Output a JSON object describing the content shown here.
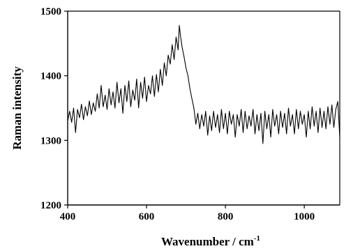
{
  "chart_data": {
    "type": "line",
    "title": "",
    "xlabel": "Wavenumber / cm",
    "xlabel_superscript": "-1",
    "ylabel": "Raman intensity",
    "xlim": [
      400,
      1090
    ],
    "ylim": [
      1200,
      1500
    ],
    "x_ticks": [
      400,
      600,
      800,
      1000
    ],
    "y_ticks": [
      1200,
      1300,
      1400,
      1500
    ],
    "x_tick_labels": [
      "400",
      "600",
      "800",
      "1000"
    ],
    "y_tick_labels": [
      "1200",
      "1300",
      "1400",
      "1500"
    ],
    "grid": false,
    "legend": "none",
    "line_color": "#000000",
    "series": [
      {
        "x": [
          400,
          405,
          410,
          415,
          420,
          425,
          430,
          435,
          440,
          445,
          450,
          455,
          460,
          465,
          470,
          475,
          480,
          485,
          490,
          495,
          500,
          505,
          510,
          515,
          520,
          525,
          530,
          535,
          540,
          545,
          550,
          555,
          560,
          565,
          570,
          575,
          580,
          585,
          590,
          595,
          600,
          605,
          610,
          615,
          620,
          625,
          630,
          635,
          640,
          645,
          650,
          655,
          660,
          665,
          670,
          675,
          680,
          683,
          686,
          690,
          695,
          700,
          705,
          710,
          715,
          720,
          725,
          730,
          735,
          740,
          745,
          750,
          755,
          760,
          765,
          770,
          775,
          780,
          785,
          790,
          795,
          800,
          805,
          810,
          815,
          820,
          825,
          830,
          835,
          840,
          845,
          850,
          855,
          860,
          865,
          870,
          875,
          880,
          885,
          890,
          895,
          900,
          905,
          910,
          915,
          920,
          925,
          930,
          935,
          940,
          945,
          950,
          955,
          960,
          965,
          970,
          975,
          980,
          985,
          990,
          995,
          1000,
          1005,
          1010,
          1015,
          1020,
          1025,
          1030,
          1035,
          1040,
          1045,
          1050,
          1055,
          1060,
          1065,
          1070,
          1075,
          1080,
          1085,
          1090
        ],
        "values": [
          1330,
          1345,
          1328,
          1350,
          1312,
          1348,
          1335,
          1356,
          1332,
          1352,
          1338,
          1361,
          1340,
          1358,
          1345,
          1372,
          1350,
          1385,
          1352,
          1370,
          1348,
          1380,
          1355,
          1375,
          1350,
          1390,
          1358,
          1380,
          1342,
          1385,
          1360,
          1392,
          1352,
          1378,
          1362,
          1395,
          1350,
          1390,
          1365,
          1398,
          1360,
          1385,
          1372,
          1400,
          1368,
          1402,
          1375,
          1410,
          1385,
          1420,
          1400,
          1432,
          1418,
          1448,
          1425,
          1460,
          1440,
          1478,
          1462,
          1445,
          1430,
          1412,
          1400,
          1380,
          1365,
          1350,
          1325,
          1342,
          1318,
          1340,
          1322,
          1345,
          1308,
          1338,
          1315,
          1345,
          1320,
          1340,
          1312,
          1348,
          1318,
          1342,
          1310,
          1345,
          1325,
          1340,
          1305,
          1340,
          1322,
          1348,
          1312,
          1345,
          1318,
          1338,
          1322,
          1348,
          1310,
          1340,
          1315,
          1342,
          1295,
          1345,
          1318,
          1340,
          1305,
          1348,
          1322,
          1340,
          1310,
          1345,
          1320,
          1342,
          1310,
          1350,
          1322,
          1340,
          1310,
          1348,
          1318,
          1345,
          1325,
          1340,
          1305,
          1345,
          1318,
          1352,
          1322,
          1345,
          1312,
          1350,
          1320,
          1345,
          1318,
          1352,
          1325,
          1355,
          1320,
          1348,
          1360,
          1305
        ]
      }
    ]
  }
}
